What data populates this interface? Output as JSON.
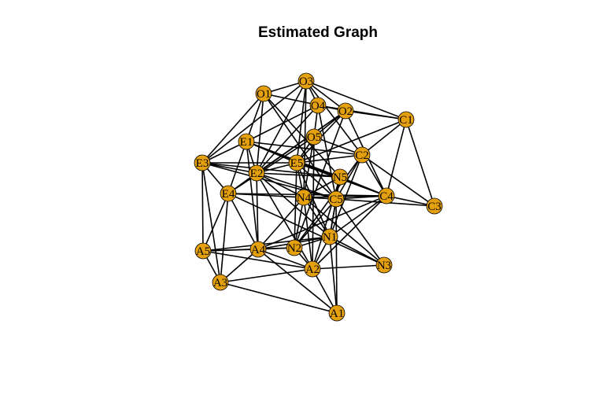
{
  "title": "Estimated Graph",
  "node_color": "#E5A00D",
  "edge_color": "#000000",
  "nodes": [
    "O1",
    "O3",
    "O4",
    "O2",
    "C1",
    "O5",
    "E1",
    "C2",
    "E3",
    "E2",
    "E5",
    "N5",
    "E4",
    "N4",
    "C5",
    "C4",
    "C3",
    "N1",
    "A5",
    "A4",
    "N2",
    "N3",
    "A2",
    "A3",
    "A1"
  ],
  "edges": [
    [
      "O1",
      "O3"
    ],
    [
      "O1",
      "O2"
    ],
    [
      "O1",
      "E1"
    ],
    [
      "O1",
      "E3"
    ],
    [
      "O1",
      "C5"
    ],
    [
      "O1",
      "N5"
    ],
    [
      "O1",
      "E2"
    ],
    [
      "O3",
      "O4"
    ],
    [
      "O3",
      "O2"
    ],
    [
      "O3",
      "C1"
    ],
    [
      "O3",
      "E3"
    ],
    [
      "O3",
      "E2"
    ],
    [
      "O3",
      "C2"
    ],
    [
      "O3",
      "N4"
    ],
    [
      "O3",
      "E5"
    ],
    [
      "O4",
      "O5"
    ],
    [
      "O4",
      "O2"
    ],
    [
      "O4",
      "C1"
    ],
    [
      "O4",
      "E2"
    ],
    [
      "O4",
      "C5"
    ],
    [
      "O4",
      "E1"
    ],
    [
      "O2",
      "C1"
    ],
    [
      "O2",
      "E2"
    ],
    [
      "O2",
      "E4"
    ],
    [
      "O2",
      "O5"
    ],
    [
      "O2",
      "C4"
    ],
    [
      "O2",
      "N2"
    ],
    [
      "O2",
      "E5"
    ],
    [
      "C1",
      "C2"
    ],
    [
      "C1",
      "C3"
    ],
    [
      "C1",
      "E5"
    ],
    [
      "C1",
      "C4"
    ],
    [
      "O5",
      "C2"
    ],
    [
      "O5",
      "N4"
    ],
    [
      "O5",
      "E5"
    ],
    [
      "O5",
      "A2"
    ],
    [
      "O5",
      "E4"
    ],
    [
      "E1",
      "E3"
    ],
    [
      "E1",
      "E2"
    ],
    [
      "E1",
      "C2"
    ],
    [
      "E1",
      "E5"
    ],
    [
      "E1",
      "N5"
    ],
    [
      "E1",
      "C4"
    ],
    [
      "E1",
      "A4"
    ],
    [
      "E1",
      "E4"
    ],
    [
      "C2",
      "C4"
    ],
    [
      "C2",
      "C5"
    ],
    [
      "C2",
      "N1"
    ],
    [
      "C2",
      "E5"
    ],
    [
      "C2",
      "N2"
    ],
    [
      "C2",
      "C3"
    ],
    [
      "E3",
      "E2"
    ],
    [
      "E3",
      "E4"
    ],
    [
      "E3",
      "A5"
    ],
    [
      "E3",
      "A3"
    ],
    [
      "E3",
      "E5"
    ],
    [
      "E3",
      "C5"
    ],
    [
      "E3",
      "N5"
    ],
    [
      "E2",
      "E5"
    ],
    [
      "E2",
      "E4"
    ],
    [
      "E2",
      "N4"
    ],
    [
      "E2",
      "N5"
    ],
    [
      "E2",
      "C5"
    ],
    [
      "E2",
      "A2"
    ],
    [
      "E2",
      "A4"
    ],
    [
      "E2",
      "N1"
    ],
    [
      "E5",
      "N5"
    ],
    [
      "E5",
      "N4"
    ],
    [
      "E5",
      "N1"
    ],
    [
      "E5",
      "C4"
    ],
    [
      "E5",
      "N2"
    ],
    [
      "E5",
      "C5"
    ],
    [
      "N5",
      "C5"
    ],
    [
      "N5",
      "C4"
    ],
    [
      "N5",
      "N4"
    ],
    [
      "N5",
      "N1"
    ],
    [
      "N5",
      "A2"
    ],
    [
      "E4",
      "N4"
    ],
    [
      "E4",
      "A5"
    ],
    [
      "E4",
      "A3"
    ],
    [
      "E4",
      "A4"
    ],
    [
      "E4",
      "C4"
    ],
    [
      "E4",
      "N3"
    ],
    [
      "N4",
      "C5"
    ],
    [
      "N4",
      "N1"
    ],
    [
      "N4",
      "N2"
    ],
    [
      "N4",
      "A4"
    ],
    [
      "N4",
      "N3"
    ],
    [
      "N4",
      "C4"
    ],
    [
      "N4",
      "A2"
    ],
    [
      "C5",
      "C4"
    ],
    [
      "C5",
      "C3"
    ],
    [
      "C5",
      "N1"
    ],
    [
      "C5",
      "N2"
    ],
    [
      "C5",
      "A1"
    ],
    [
      "C5",
      "N3"
    ],
    [
      "C4",
      "C3"
    ],
    [
      "C4",
      "N1"
    ],
    [
      "C4",
      "A4"
    ],
    [
      "C4",
      "A2"
    ],
    [
      "N1",
      "N2"
    ],
    [
      "N1",
      "N3"
    ],
    [
      "N1",
      "A1"
    ],
    [
      "N1",
      "A2"
    ],
    [
      "N1",
      "A4"
    ],
    [
      "A5",
      "A4"
    ],
    [
      "A5",
      "A3"
    ],
    [
      "A5",
      "N2"
    ],
    [
      "A5",
      "A2"
    ],
    [
      "A5",
      "N1"
    ],
    [
      "A4",
      "A3"
    ],
    [
      "A4",
      "A2"
    ],
    [
      "A4",
      "A1"
    ],
    [
      "A4",
      "N2"
    ],
    [
      "N2",
      "A2"
    ],
    [
      "A2",
      "A3"
    ],
    [
      "A2",
      "A1"
    ],
    [
      "A2",
      "N3"
    ],
    [
      "A3",
      "A1"
    ]
  ]
}
